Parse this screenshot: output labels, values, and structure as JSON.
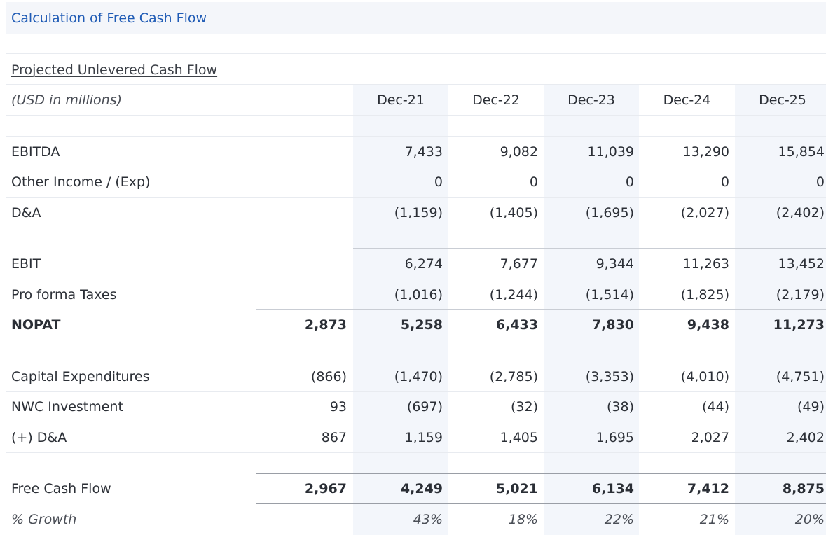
{
  "title": "Calculation of Free Cash Flow",
  "subtitle": "Projected Unlevered Cash Flow",
  "units": "(USD in millions)",
  "columns": [
    "Dec-21",
    "Dec-22",
    "Dec-23",
    "Dec-24",
    "Dec-25"
  ],
  "rows": {
    "ebitda": {
      "label": "EBITDA",
      "base": "",
      "values": [
        "7,433",
        "9,082",
        "11,039",
        "13,290",
        "15,854"
      ]
    },
    "other_income": {
      "label": "Other Income / (Exp)",
      "base": "",
      "values": [
        "0",
        "0",
        "0",
        "0",
        "0"
      ]
    },
    "da": {
      "label": "D&A",
      "base": "",
      "values": [
        "(1,159)",
        "(1,405)",
        "(1,695)",
        "(2,027)",
        "(2,402)"
      ]
    },
    "ebit": {
      "label": "EBIT",
      "base": "",
      "values": [
        "6,274",
        "7,677",
        "9,344",
        "11,263",
        "13,452"
      ]
    },
    "taxes": {
      "label": "Pro forma Taxes",
      "base": "",
      "values": [
        "(1,016)",
        "(1,244)",
        "(1,514)",
        "(1,825)",
        "(2,179)"
      ]
    },
    "nopat": {
      "label": "NOPAT",
      "base": "2,873",
      "values": [
        "5,258",
        "6,433",
        "7,830",
        "9,438",
        "11,273"
      ]
    },
    "capex": {
      "label": "Capital Expenditures",
      "base": "(866)",
      "values": [
        "(1,470)",
        "(2,785)",
        "(3,353)",
        "(4,010)",
        "(4,751)"
      ]
    },
    "nwc": {
      "label": "NWC Investment",
      "base": "93",
      "values": [
        "(697)",
        "(32)",
        "(38)",
        "(44)",
        "(49)"
      ]
    },
    "plus_da": {
      "label": "(+) D&A",
      "base": "867",
      "values": [
        "1,159",
        "1,405",
        "1,695",
        "2,027",
        "2,402"
      ]
    },
    "fcf": {
      "label": "Free Cash Flow",
      "base": "2,967",
      "values": [
        "4,249",
        "5,021",
        "6,134",
        "7,412",
        "8,875"
      ]
    },
    "growth": {
      "label": "% Growth",
      "base": "",
      "values": [
        "43%",
        "18%",
        "22%",
        "21%",
        "20%"
      ]
    }
  }
}
